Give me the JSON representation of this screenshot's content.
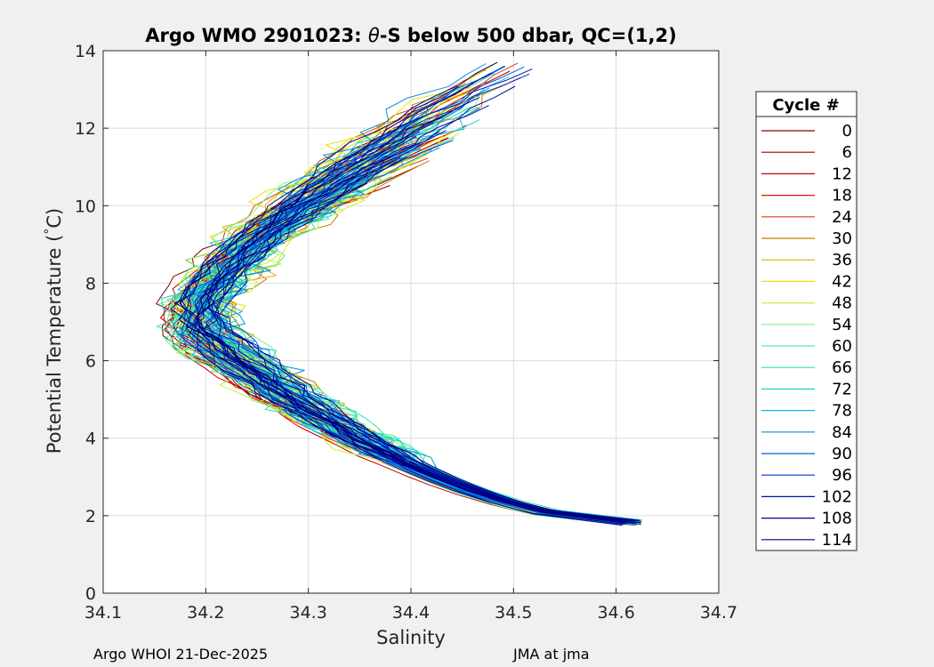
{
  "chart_data": {
    "type": "line",
    "title_prefix": "Argo WMO 2901023: ",
    "title_theta": "θ",
    "title_suffix": "-S below 500 dbar,  QC=(1,2)",
    "xlabel": "Salinity",
    "ylabel_prefix": "Potential Temperature (",
    "ylabel_degree": "°",
    "ylabel_suffix": "C)",
    "xlim": [
      34.1,
      34.7
    ],
    "ylim": [
      0,
      14
    ],
    "x_ticks": [
      "34.1",
      "34.2",
      "34.3",
      "34.4",
      "34.5",
      "34.6",
      "34.7"
    ],
    "y_ticks": [
      "0",
      "2",
      "4",
      "6",
      "8",
      "10",
      "12",
      "14"
    ],
    "grid": true,
    "legend_title": "Cycle #",
    "legend_position": "outside-right",
    "series": [
      {
        "name": "0",
        "color": "#7f0000"
      },
      {
        "name": "6",
        "color": "#9a0000"
      },
      {
        "name": "12",
        "color": "#c00000"
      },
      {
        "name": "18",
        "color": "#e21500"
      },
      {
        "name": "24",
        "color": "#d84010"
      },
      {
        "name": "30",
        "color": "#c08000"
      },
      {
        "name": "36",
        "color": "#ddb000"
      },
      {
        "name": "42",
        "color": "#f0e000"
      },
      {
        "name": "48",
        "color": "#c8f040"
      },
      {
        "name": "54",
        "color": "#80f080"
      },
      {
        "name": "60",
        "color": "#50f0a0"
      },
      {
        "name": "66",
        "color": "#30e0b0"
      },
      {
        "name": "72",
        "color": "#20d0d0"
      },
      {
        "name": "78",
        "color": "#10b8e8"
      },
      {
        "name": "84",
        "color": "#0090e0"
      },
      {
        "name": "90",
        "color": "#0060e0"
      },
      {
        "name": "96",
        "color": "#0030d0"
      },
      {
        "name": "102",
        "color": "#0010a8"
      },
      {
        "name": "108",
        "color": "#000088"
      },
      {
        "name": "114",
        "color": "#00007a"
      }
    ]
  },
  "footer": {
    "left": "Argo WHOI 21-Dec-2025",
    "right": "JMA at jma"
  }
}
